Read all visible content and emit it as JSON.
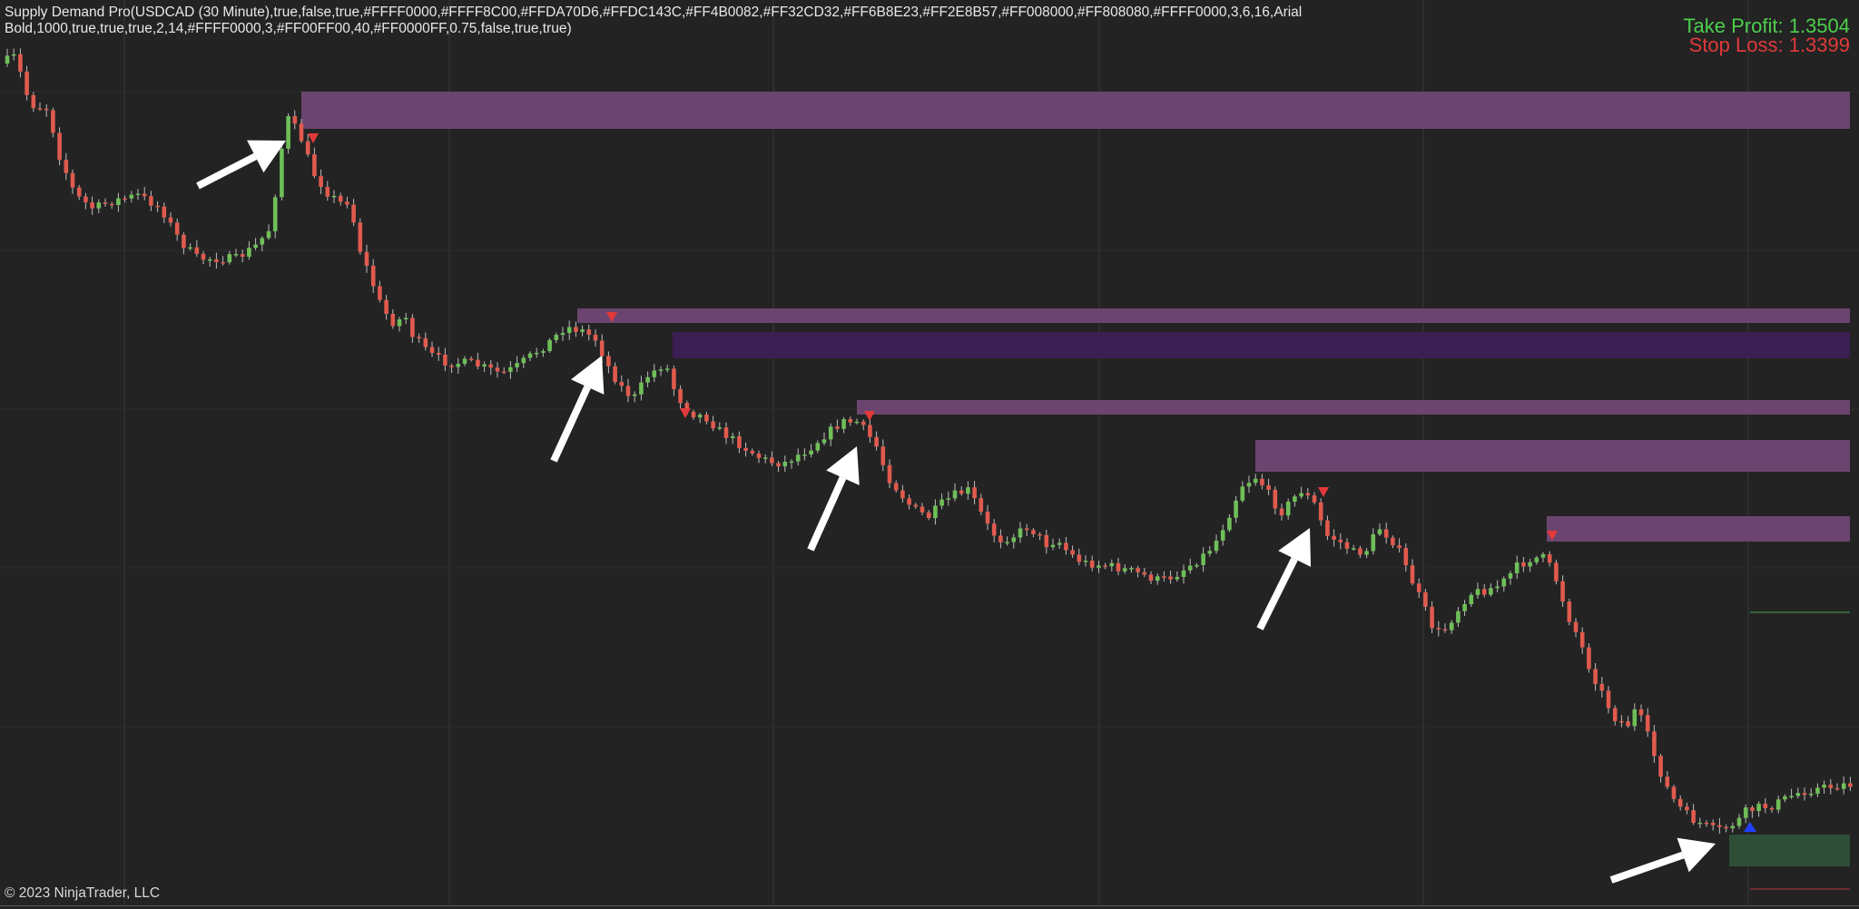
{
  "indicator": {
    "line1": "Supply Demand Pro(USDCAD (30 Minute),true,false,true,#FFFF0000,#FFFF8C00,#FFDA70D6,#FFDC143C,#FF4B0082,#FF32CD32,#FF6B8E23,#FF2E8B57,#FF008000,#FF808080,#FFFF0000,3,6,16,Arial",
    "line2": "Bold,1000,true,true,true,2,14,#FFFF0000,3,#FF00FF00,40,#FF0000FF,0.75,false,true,true)"
  },
  "targets": {
    "take_profit": "Take Profit: 1.3504",
    "stop_loss": "Stop Loss: 1.3399"
  },
  "footer": {
    "copyright": "© 2023 NinjaTrader, LLC"
  },
  "colors": {
    "background": "#232323",
    "up_candle": "#6fbf58",
    "down_candle": "#e05a4e",
    "wick": "#bdbdbd",
    "supply_zone": "#6b4570",
    "supply_zone_dark": "#3b1f52",
    "demand_zone": "#2e4e38",
    "gridline": "#3a3a3a",
    "arrow": "#ffffff",
    "sell_marker": "#e23a3a",
    "buy_marker": "#2040ff",
    "take_profit": "#4ccf4c",
    "stop_loss": "#e23a3a"
  },
  "icons": {
    "annotation": "arrow-pointer-icon",
    "sell_signal": "triangle-down-icon",
    "buy_signal": "triangle-up-icon"
  }
}
